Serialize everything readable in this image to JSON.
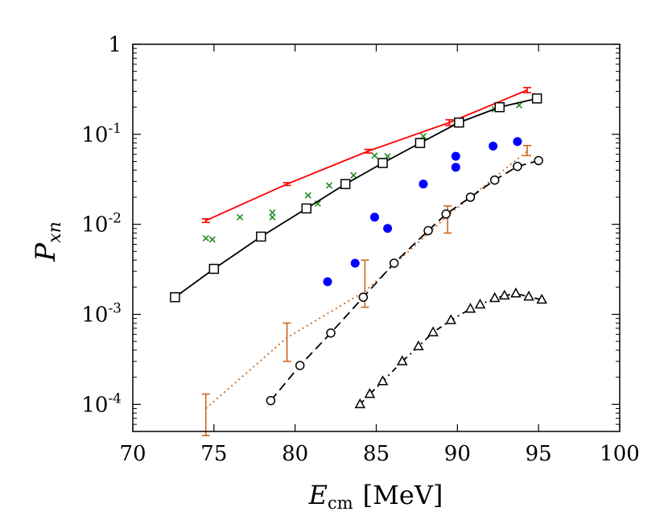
{
  "chart_data": {
    "type": "scatter",
    "xlabel_main": "E",
    "xlabel_sub": "cm",
    "xlabel_unit": "[MeV]",
    "ylabel_main": "P",
    "ylabel_sub": "xn",
    "xlim": [
      70,
      100
    ],
    "ylim": [
      5e-05,
      1
    ],
    "yscale": "log",
    "grid": false,
    "x_ticks": [
      {
        "value": 70,
        "label": "70"
      },
      {
        "value": 75,
        "label": "75"
      },
      {
        "value": 80,
        "label": "80"
      },
      {
        "value": 85,
        "label": "85"
      },
      {
        "value": 90,
        "label": "90"
      },
      {
        "value": 95,
        "label": "95"
      },
      {
        "value": 100,
        "label": "100"
      }
    ],
    "y_ticks": [
      {
        "value": 1,
        "label": "1",
        "base": "",
        "exp": ""
      },
      {
        "value": 0.1,
        "label": "",
        "base": "10",
        "exp": "-1"
      },
      {
        "value": 0.01,
        "label": "",
        "base": "10",
        "exp": "-2"
      },
      {
        "value": 0.001,
        "label": "",
        "base": "10",
        "exp": "-3"
      },
      {
        "value": 0.0001,
        "label": "",
        "base": "10",
        "exp": "-4"
      }
    ],
    "series": [
      {
        "key": "red_line",
        "color": "#ff0000",
        "line": "solid",
        "marker": "none",
        "errorbars": true,
        "x": [
          74.5,
          79.5,
          84.5,
          89.5,
          94.3
        ],
        "y": [
          0.011,
          0.028,
          0.065,
          0.135,
          0.31
        ],
        "ylo": [
          0.0105,
          0.027,
          0.062,
          0.125,
          0.29
        ],
        "yhi": [
          0.0115,
          0.029,
          0.068,
          0.145,
          0.33
        ]
      },
      {
        "key": "green_crosses",
        "color": "#228b22",
        "line": "none",
        "marker": "x",
        "x": [
          74.5,
          74.9,
          76.6,
          78.6,
          78.6,
          80.8,
          81.4,
          82.1,
          83.6,
          84.9,
          85.7,
          87.9,
          89.9,
          92.3,
          93.8
        ],
        "y": [
          0.007,
          0.0068,
          0.012,
          0.012,
          0.0135,
          0.021,
          0.017,
          0.027,
          0.035,
          0.058,
          0.057,
          0.095,
          0.135,
          0.19,
          0.21
        ]
      },
      {
        "key": "black_squares",
        "color": "#000000",
        "line": "solid",
        "marker": "square",
        "x": [
          72.6,
          75.0,
          77.9,
          80.7,
          83.1,
          85.4,
          87.7,
          90.1,
          92.6,
          94.9
        ],
        "y": [
          0.00155,
          0.0032,
          0.0073,
          0.015,
          0.028,
          0.048,
          0.08,
          0.135,
          0.2,
          0.25
        ]
      },
      {
        "key": "blue_dots",
        "color": "#0000ff",
        "line": "none",
        "marker": "filled-circle",
        "x": [
          82.0,
          83.7,
          84.9,
          85.7,
          87.9,
          89.9,
          89.9,
          92.2,
          93.7
        ],
        "y": [
          0.0023,
          0.0037,
          0.012,
          0.009,
          0.028,
          0.043,
          0.057,
          0.074,
          0.083
        ]
      },
      {
        "key": "orange_dotted",
        "color": "#cd661d",
        "line": "dotted",
        "marker": "none",
        "errorbars": true,
        "x": [
          74.5,
          79.5,
          84.3,
          89.4,
          94.3
        ],
        "y": [
          9e-05,
          0.00055,
          0.0018,
          0.0125,
          0.065
        ],
        "ylo": [
          4.5e-05,
          0.0003,
          0.0012,
          0.008,
          0.058
        ],
        "yhi": [
          0.00013,
          0.0008,
          0.004,
          0.016,
          0.075
        ]
      },
      {
        "key": "black_circles",
        "color": "#000000",
        "line": "dashed",
        "marker": "open-circle",
        "x": [
          78.5,
          80.3,
          82.2,
          84.2,
          86.1,
          88.2,
          89.3,
          90.8,
          92.3,
          93.7,
          95.0
        ],
        "y": [
          0.00011,
          0.00027,
          0.00062,
          0.00155,
          0.0037,
          0.0085,
          0.013,
          0.02,
          0.031,
          0.044,
          0.051
        ]
      },
      {
        "key": "black_triangles",
        "color": "#000000",
        "line": "dashdot",
        "marker": "open-triangle",
        "x": [
          84.0,
          84.6,
          85.4,
          86.6,
          87.6,
          88.5,
          89.6,
          90.8,
          91.4,
          92.3,
          92.9,
          93.6,
          94.4,
          95.2
        ],
        "y": [
          0.0001,
          0.00013,
          0.00018,
          0.0003,
          0.00044,
          0.00063,
          0.00086,
          0.00115,
          0.00128,
          0.00151,
          0.00161,
          0.0017,
          0.00157,
          0.00145
        ]
      }
    ]
  }
}
